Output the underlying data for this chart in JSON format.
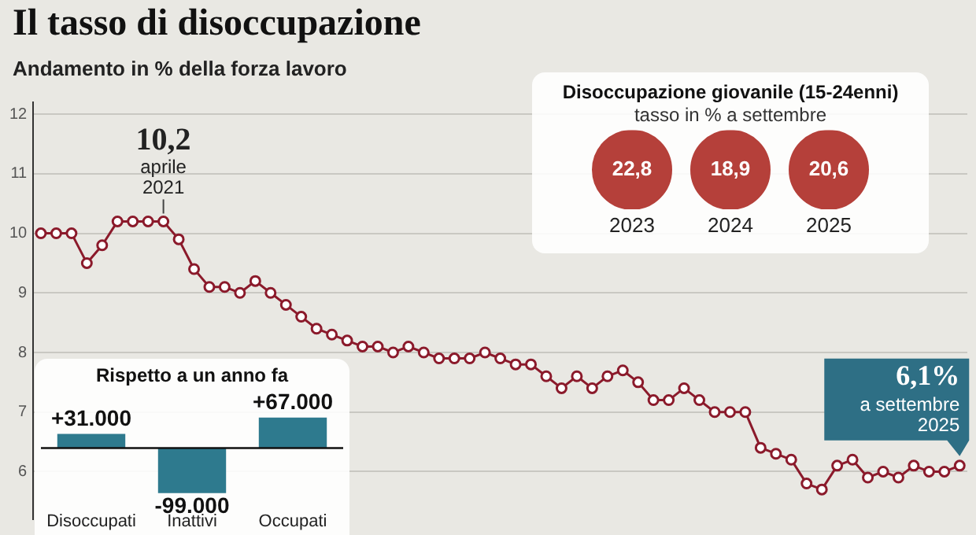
{
  "chart_data": [
    {
      "type": "line",
      "title": "Il tasso di disoccupazione",
      "subtitle": "Andamento in % della forza lavoro",
      "categories": [
        null,
        null,
        null,
        null,
        null,
        null,
        null,
        null,
        null,
        null,
        null,
        null,
        null,
        null,
        null,
        null,
        null,
        null,
        null,
        null,
        null,
        null,
        null,
        null,
        null,
        null,
        null,
        null,
        null,
        null,
        null,
        null,
        null,
        null,
        null,
        null,
        null,
        null,
        null,
        null,
        null,
        null,
        null,
        null,
        null,
        null,
        null,
        null,
        null,
        null,
        null,
        null,
        null,
        null,
        null,
        null,
        null,
        null,
        null,
        null,
        null
      ],
      "series": [
        {
          "color": "#8b1a2b",
          "values": [
            10.0,
            10.0,
            10.0,
            9.5,
            9.8,
            10.2,
            10.2,
            10.2,
            10.2,
            9.9,
            9.4,
            9.1,
            9.1,
            9.0,
            9.2,
            9.0,
            8.8,
            8.6,
            8.4,
            8.3,
            8.2,
            8.1,
            8.1,
            8.0,
            8.1,
            8.0,
            7.9,
            7.9,
            7.9,
            8.0,
            7.9,
            7.8,
            7.8,
            7.6,
            7.4,
            7.6,
            7.4,
            7.6,
            7.7,
            7.5,
            7.2,
            7.2,
            7.4,
            7.2,
            7.0,
            7.0,
            7.0,
            6.4,
            6.3,
            6.2,
            5.8,
            5.7,
            6.1,
            6.2,
            5.9,
            6.0,
            5.9,
            6.1,
            6.0,
            6.0,
            6.1
          ]
        }
      ],
      "ylim": [
        5.2,
        12.2
      ],
      "yticks": [
        6,
        7,
        8,
        9,
        10,
        11,
        12
      ],
      "grid": "y",
      "tick_labels": "y",
      "marker": "circle",
      "annotations": [
        "10,2\naprile\n2021",
        "6,1%\na settembre\n2025"
      ]
    },
    {
      "type": "bar",
      "title": "Rispetto a un anno fa",
      "categories": [
        "Disoccupati",
        "Inattivi",
        "Occupati"
      ],
      "values": [
        31000,
        -99000,
        67000
      ],
      "color": "#2e7a8e",
      "value_labels": [
        "+31.000",
        "-99.000",
        "+67.000"
      ]
    },
    {
      "type": "other",
      "title": "Disoccupazione giovanile (15-24enni)",
      "subtitle": "tasso in % a settembre",
      "categories": [
        "2023",
        "2024",
        "2025"
      ],
      "values": [
        22.8,
        18.9,
        20.6
      ],
      "color": "#b5403a",
      "value_labels": [
        "22,8",
        "18,9",
        "20,6"
      ]
    }
  ]
}
